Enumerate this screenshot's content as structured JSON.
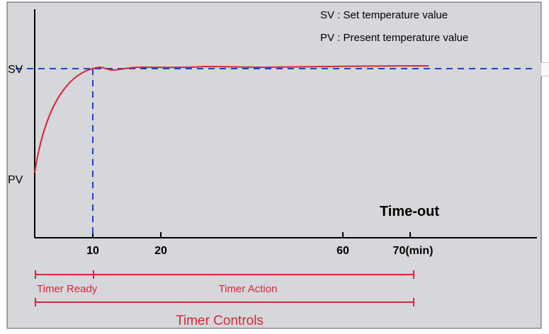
{
  "legend": {
    "sv": "SV : Set temperature value",
    "pv": "PV : Present temperature value"
  },
  "axis": {
    "sv_label": "SV",
    "pv_label": "PV",
    "ticks": [
      "10",
      "20",
      "60",
      "70(min)"
    ]
  },
  "annotations": {
    "time_out": "Time-out",
    "timer_ready": "Timer Ready",
    "timer_action": "Timer Action",
    "timer_controls": "Timer Controls"
  },
  "colors": {
    "background": "#d6d7da",
    "curve": "#d4283a",
    "dashed": "#2040d0",
    "timer": "#d4283a",
    "axis": "#000000"
  }
}
